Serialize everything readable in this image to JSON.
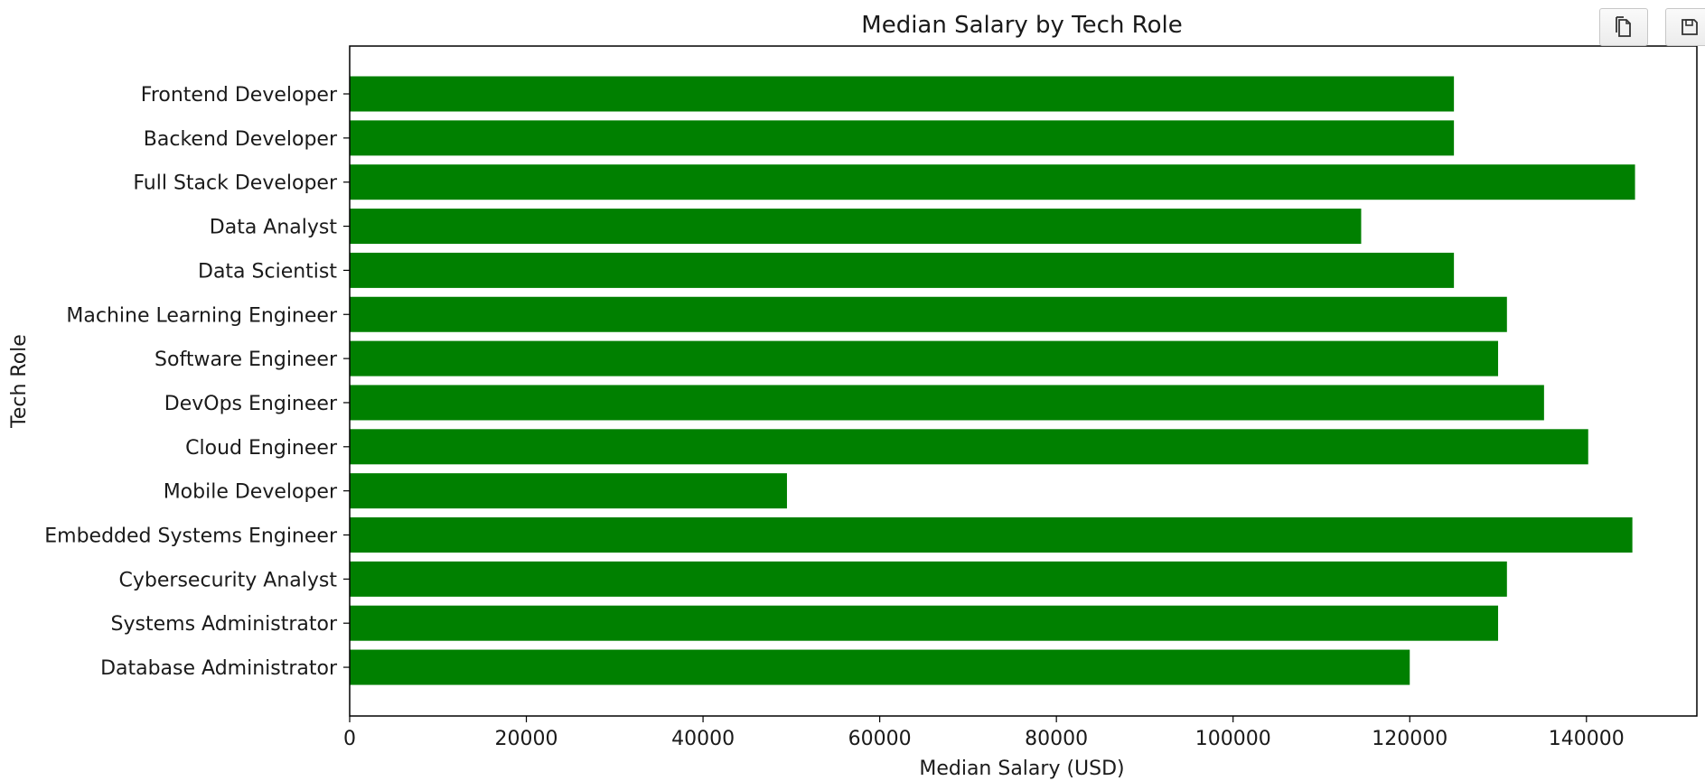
{
  "chart_data": {
    "type": "bar",
    "orientation": "horizontal",
    "title": "Median Salary by Tech Role",
    "xlabel": "Median Salary (USD)",
    "ylabel": "Tech Role",
    "categories": [
      "Frontend Developer",
      "Backend Developer",
      "Full Stack Developer",
      "Data Analyst",
      "Data Scientist",
      "Machine Learning Engineer",
      "Software Engineer",
      "DevOps Engineer",
      "Cloud Engineer",
      "Mobile Developer",
      "Embedded Systems Engineer",
      "Cybersecurity Analyst",
      "Systems Administrator",
      "Database Administrator"
    ],
    "values": [
      125000,
      125000,
      145500,
      114500,
      125000,
      131000,
      130000,
      135200,
      140200,
      49500,
      145200,
      131000,
      130000,
      120000
    ],
    "xlim": [
      0,
      152500
    ],
    "xticks": [
      0,
      20000,
      40000,
      60000,
      80000,
      100000,
      120000,
      140000
    ],
    "xtick_labels": [
      "0",
      "20000",
      "40000",
      "60000",
      "80000",
      "100000",
      "120000",
      "140000"
    ],
    "bar_color": "#008000",
    "grid": false,
    "legend": "none"
  },
  "toolbar": {
    "copy_icon": "copy-icon",
    "save_icon": "save-icon"
  }
}
